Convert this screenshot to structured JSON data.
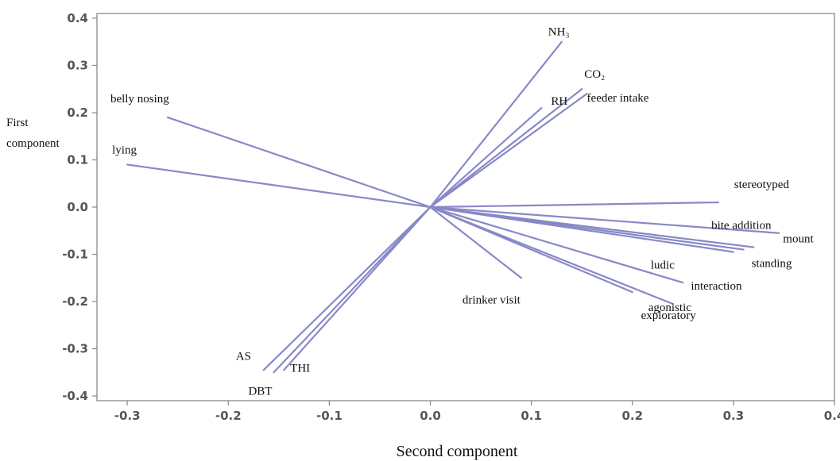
{
  "chart_data": {
    "type": "scatter",
    "subtype": "loading-plot",
    "title": "",
    "xlabel": "Second component",
    "ylabel": [
      "First",
      "component"
    ],
    "xlim": [
      -0.33,
      0.4
    ],
    "ylim": [
      -0.41,
      0.41
    ],
    "xticks": [
      -0.3,
      -0.2,
      -0.1,
      0.0,
      0.1,
      0.2,
      0.3,
      0.4
    ],
    "xticklabels": [
      "-0.3",
      "-0.2",
      "-0.1",
      "0.0",
      "0.1",
      "0.2",
      "0.3",
      "0.4"
    ],
    "yticks": [
      0.4,
      0.3,
      0.2,
      0.1,
      0.0,
      -0.1,
      -0.2,
      -0.3,
      -0.4
    ],
    "yticklabels": [
      "0.4",
      "0.3",
      "0.2",
      "0.1",
      "0.0",
      "-0.1",
      "-0.2",
      "-0.3",
      "-0.4"
    ],
    "grid": false,
    "line_color": "#8888c8",
    "vectors": [
      {
        "label": "NH₃",
        "x": 0.13,
        "y": 0.35
      },
      {
        "label": "RH",
        "x": 0.11,
        "y": 0.21
      },
      {
        "label": "CO₂",
        "x": 0.15,
        "y": 0.25
      },
      {
        "label": "feeder intake",
        "x": 0.155,
        "y": 0.24
      },
      {
        "label": "belly nosing",
        "x": -0.26,
        "y": 0.19
      },
      {
        "label": "lying",
        "x": -0.3,
        "y": 0.09
      },
      {
        "label": "stereotyped",
        "x": 0.285,
        "y": 0.01
      },
      {
        "label": "bite addition",
        "x": 0.345,
        "y": -0.055
      },
      {
        "label": "mount",
        "x": 0.32,
        "y": -0.085
      },
      {
        "label": "standing",
        "x": 0.31,
        "y": -0.09
      },
      {
        "label": "ludic",
        "x": 0.3,
        "y": -0.095
      },
      {
        "label": "interaction",
        "x": 0.25,
        "y": -0.16
      },
      {
        "label": "agonistic",
        "x": 0.2,
        "y": -0.18
      },
      {
        "label": "exploratory",
        "x": 0.24,
        "y": -0.205
      },
      {
        "label": "drinker visit",
        "x": 0.09,
        "y": -0.15
      },
      {
        "label": "AS",
        "x": -0.165,
        "y": -0.345
      },
      {
        "label": "DBT",
        "x": -0.155,
        "y": -0.35
      },
      {
        "label": "THI",
        "x": -0.145,
        "y": -0.345
      }
    ]
  }
}
